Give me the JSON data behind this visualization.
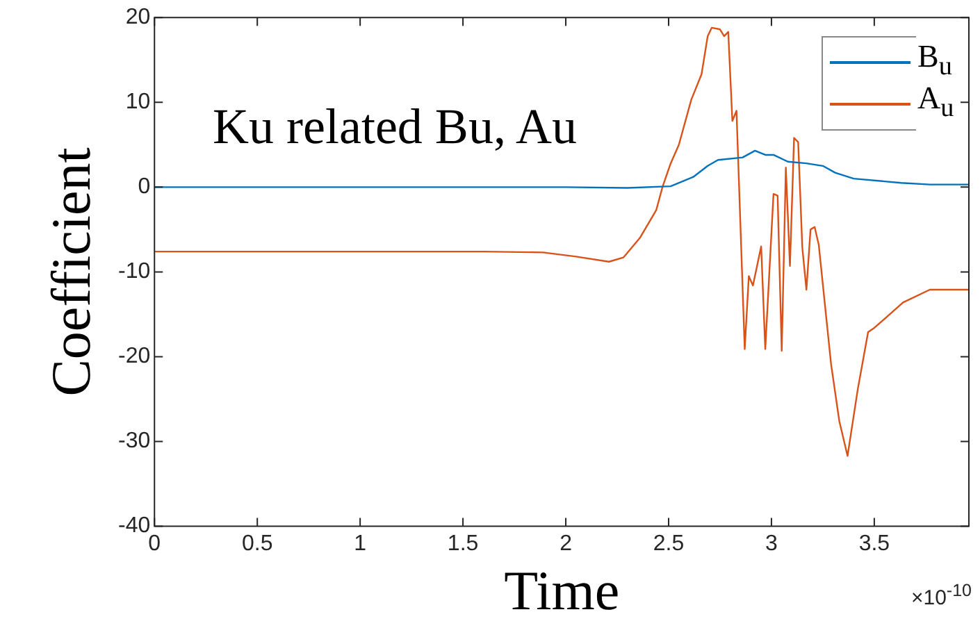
{
  "chart_data": {
    "type": "line",
    "xlabel": "Time",
    "ylabel": "Coefficient",
    "annotations": [
      "Ku related Bu, Au",
      "×10$^{-10}$"
    ],
    "xlim": [
      0,
      3.96
    ],
    "xticks": [
      0,
      0.5,
      1,
      1.5,
      2,
      2.5,
      3,
      3.5
    ],
    "ylim": [
      -40,
      20
    ],
    "yticks": [
      -40,
      -30,
      -20,
      -10,
      0,
      10,
      20
    ],
    "grid": false,
    "legend": "top right",
    "marker": "none",
    "line_style": "solid",
    "series": [
      {
        "name": "B$_{u}$",
        "color": "#0072bd",
        "x": [
          0,
          1,
          2,
          2.3,
          2.51,
          2.62,
          2.69,
          2.74,
          2.86,
          2.92,
          2.97,
          3.01,
          3.08,
          3.17,
          3.25,
          3.31,
          3.4,
          3.63,
          3.77,
          3.96
        ],
        "values": [
          0,
          0,
          0,
          -0.1,
          0.1,
          1.2,
          2.5,
          3.2,
          3.5,
          4.3,
          3.8,
          3.8,
          3,
          2.8,
          2.5,
          1.7,
          1,
          0.5,
          0.3,
          0.3
        ]
      },
      {
        "name": "A$_{u}$",
        "color": "#d95319",
        "x": [
          0,
          1.6,
          1.89,
          2.05,
          2.21,
          2.28,
          2.36,
          2.44,
          2.47,
          2.51,
          2.55,
          2.61,
          2.66,
          2.69,
          2.71,
          2.75,
          2.77,
          2.79,
          2.81,
          2.83,
          2.87,
          2.89,
          2.91,
          2.95,
          2.97,
          3.01,
          3.03,
          3.05,
          3.07,
          3.09,
          3.11,
          3.13,
          3.15,
          3.17,
          3.19,
          3.21,
          3.23,
          3.29,
          3.33,
          3.37,
          3.42,
          3.47,
          3.5,
          3.58,
          3.64,
          3.77,
          3.96
        ],
        "values": [
          -7.6,
          -7.6,
          -7.7,
          -8.2,
          -8.8,
          -8.3,
          -6,
          -2.7,
          0,
          2.8,
          5,
          10.3,
          13.3,
          17.8,
          18.8,
          18.6,
          17.8,
          18.3,
          7.8,
          9,
          -19.1,
          -10.5,
          -11.6,
          -7,
          -19.1,
          -0.8,
          -1,
          -19.3,
          2.3,
          -9.3,
          5.8,
          5.3,
          -7.1,
          -12.1,
          -5,
          -4.7,
          -6.8,
          -20.9,
          -27.6,
          -31.7,
          -23.8,
          -17.1,
          -16.6,
          -14.9,
          -13.6,
          -12.1,
          -12.1
        ]
      }
    ]
  }
}
